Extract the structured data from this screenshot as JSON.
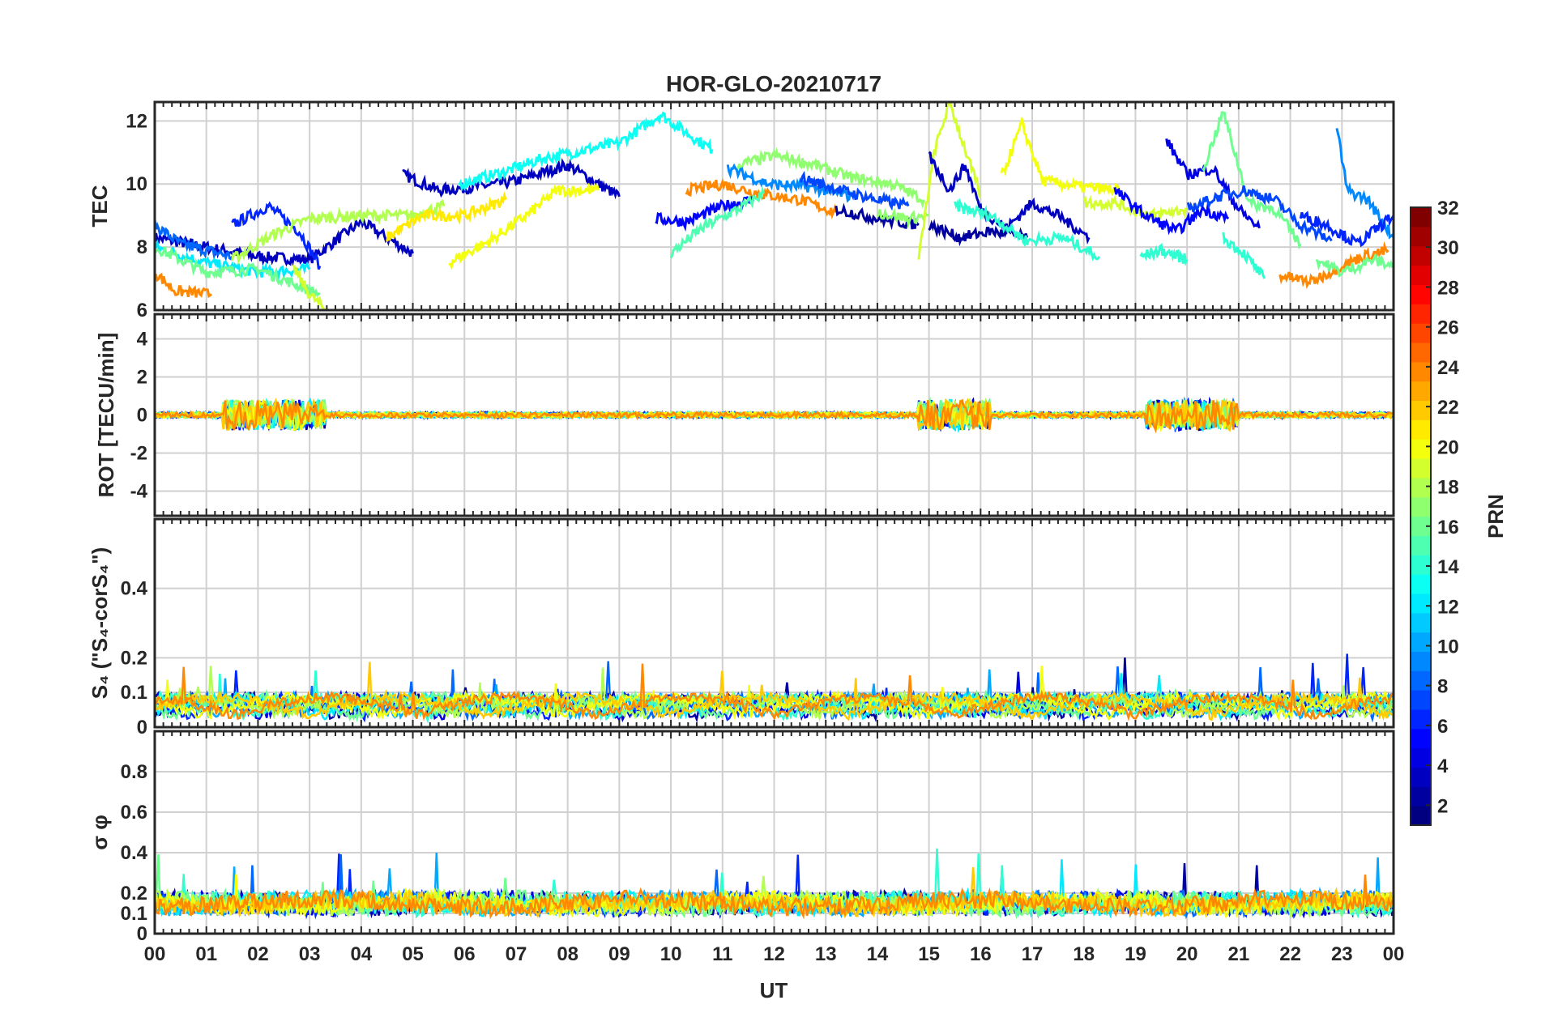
{
  "chart_data": {
    "type": "line",
    "title": "HOR-GLO-20210717",
    "xlabel": "UT",
    "x_tick_labels": [
      "00",
      "01",
      "02",
      "03",
      "04",
      "05",
      "06",
      "07",
      "08",
      "09",
      "10",
      "11",
      "12",
      "13",
      "14",
      "15",
      "16",
      "17",
      "18",
      "19",
      "20",
      "21",
      "22",
      "23",
      "00"
    ],
    "xlim_hours": [
      0,
      24
    ],
    "grid": true,
    "colorbar": {
      "label": "PRN",
      "range": [
        1,
        32
      ],
      "ticks": [
        "2",
        "4",
        "6",
        "8",
        "10",
        "12",
        "14",
        "16",
        "18",
        "20",
        "22",
        "24",
        "26",
        "28",
        "30",
        "32"
      ],
      "colormap": "jet"
    },
    "panels": [
      {
        "id": "tec",
        "ylabel": "TEC",
        "ylim": [
          6,
          12.6
        ],
        "yticks": [
          "6",
          "8",
          "10",
          "12"
        ],
        "series": [
          {
            "prn": 3,
            "points": [
              [
                0,
                8.3
              ],
              [
                1,
                8.0
              ],
              [
                2,
                7.7
              ],
              [
                3,
                7.6
              ],
              [
                4,
                8.8
              ],
              [
                5,
                7.8
              ]
            ]
          },
          {
            "prn": 3,
            "points": [
              [
                4.8,
                10.3
              ],
              [
                5.5,
                9.8
              ],
              [
                6.2,
                9.9
              ],
              [
                7,
                10.1
              ],
              [
                8,
                10.6
              ],
              [
                9,
                9.6
              ]
            ]
          },
          {
            "prn": 6,
            "points": [
              [
                1.5,
                8.7
              ],
              [
                2.2,
                9.3
              ],
              [
                2.8,
                8.5
              ],
              [
                3.2,
                7.4
              ]
            ]
          },
          {
            "prn": 8,
            "points": [
              [
                0,
                8.7
              ],
              [
                0.5,
                8.1
              ],
              [
                1,
                7.9
              ],
              [
                1.5,
                7.7
              ]
            ]
          },
          {
            "prn": 12,
            "points": [
              [
                0,
                8.0
              ],
              [
                1,
                7.5
              ],
              [
                2,
                7.2
              ],
              [
                3,
                7.3
              ]
            ]
          },
          {
            "prn": 13,
            "points": [
              [
                5.9,
                10.0
              ],
              [
                6.8,
                10.4
              ],
              [
                7.5,
                10.8
              ],
              [
                8.1,
                11.0
              ],
              [
                9,
                11.3
              ],
              [
                9.8,
                12.2
              ],
              [
                10.5,
                11.4
              ],
              [
                10.8,
                11.1
              ]
            ]
          },
          {
            "prn": 16,
            "points": [
              [
                0,
                8.0
              ],
              [
                1,
                7.2
              ],
              [
                2,
                7.3
              ],
              [
                3.2,
                6.5
              ]
            ]
          },
          {
            "prn": 18,
            "points": [
              [
                1.5,
                7.6
              ],
              [
                2.3,
                8.4
              ],
              [
                3.0,
                8.9
              ],
              [
                4.0,
                9.0
              ],
              [
                5,
                9.0
              ],
              [
                5.6,
                9.3
              ]
            ]
          },
          {
            "prn": 19,
            "points": [
              [
                2.7,
                7.3
              ],
              [
                3.0,
                6.5
              ],
              [
                3.3,
                6.0
              ]
            ]
          },
          {
            "prn": 20,
            "points": [
              [
                5.7,
                7.5
              ],
              [
                6.5,
                8.2
              ],
              [
                7.2,
                9.0
              ],
              [
                7.8,
                9.8
              ],
              [
                8.6,
                9.8
              ]
            ]
          },
          {
            "prn": 21,
            "points": [
              [
                4.5,
                8.3
              ],
              [
                5.2,
                9.0
              ],
              [
                6,
                9.0
              ],
              [
                6.8,
                9.5
              ]
            ]
          },
          {
            "prn": 24,
            "points": [
              [
                0,
                7.2
              ],
              [
                0.4,
                6.6
              ],
              [
                1.1,
                6.5
              ]
            ]
          },
          {
            "prn": 24,
            "points": [
              [
                10.3,
                9.8
              ],
              [
                11,
                10.0
              ],
              [
                11.7,
                9.7
              ],
              [
                12.5,
                9.5
              ],
              [
                13.2,
                9.1
              ]
            ]
          },
          {
            "prn": 5,
            "points": [
              [
                9.7,
                8.9
              ],
              [
                10.3,
                8.8
              ],
              [
                11,
                9.3
              ],
              [
                11.6,
                9.5
              ]
            ]
          },
          {
            "prn": 15,
            "points": [
              [
                10,
                7.8
              ],
              [
                10.6,
                8.6
              ],
              [
                11.3,
                9.2
              ],
              [
                11.8,
                9.7
              ]
            ]
          },
          {
            "prn": 17,
            "points": [
              [
                11.3,
                10.6
              ],
              [
                12,
                10.9
              ],
              [
                12.8,
                10.6
              ],
              [
                13.5,
                10.2
              ],
              [
                14.3,
                10.0
              ],
              [
                14.9,
                9.5
              ]
            ]
          },
          {
            "prn": 9,
            "points": [
              [
                11.1,
                10.5
              ],
              [
                11.9,
                10.0
              ],
              [
                12.7,
                9.9
              ],
              [
                13.5,
                9.6
              ]
            ]
          },
          {
            "prn": 7,
            "points": [
              [
                12.5,
                10.2
              ],
              [
                13.3,
                9.8
              ],
              [
                14,
                9.5
              ],
              [
                14.6,
                9.3
              ]
            ]
          },
          {
            "prn": 2,
            "points": [
              [
                13.2,
                9.2
              ],
              [
                14,
                8.9
              ],
              [
                14.8,
                8.7
              ]
            ]
          },
          {
            "prn": 17,
            "points": [
              [
                14.0,
                9.1
              ],
              [
                14.6,
                8.9
              ],
              [
                15,
                9.0
              ]
            ]
          },
          {
            "prn": 19,
            "points": [
              [
                14.8,
                7.6
              ],
              [
                15.1,
                11.0
              ],
              [
                15.4,
                12.6
              ],
              [
                15.7,
                11.1
              ],
              [
                16,
                9.6
              ]
            ]
          },
          {
            "prn": 3,
            "points": [
              [
                15,
                10.9
              ],
              [
                15.4,
                9.8
              ],
              [
                15.7,
                10.6
              ],
              [
                16,
                9.2
              ],
              [
                16.5,
                8.6
              ],
              [
                17,
                9.4
              ],
              [
                17.5,
                9.0
              ],
              [
                18.1,
                8.3
              ]
            ]
          },
          {
            "prn": 2,
            "points": [
              [
                15,
                8.7
              ],
              [
                15.6,
                8.3
              ],
              [
                16.2,
                8.5
              ],
              [
                16.9,
                8.3
              ]
            ]
          },
          {
            "prn": 20,
            "points": [
              [
                16.4,
                10.2
              ],
              [
                16.8,
                11.9
              ],
              [
                17.2,
                10.1
              ],
              [
                18,
                9.9
              ],
              [
                18.7,
                9.8
              ]
            ]
          },
          {
            "prn": 14,
            "points": [
              [
                15.5,
                9.3
              ],
              [
                16.2,
                9.0
              ],
              [
                16.9,
                8.2
              ],
              [
                17.6,
                8.3
              ],
              [
                18.3,
                7.7
              ]
            ]
          },
          {
            "prn": 19,
            "points": [
              [
                18.0,
                9.4
              ],
              [
                18.6,
                9.4
              ],
              [
                19.3,
                9.0
              ],
              [
                20,
                9.2
              ]
            ]
          },
          {
            "prn": 5,
            "points": [
              [
                18.6,
                9.8
              ],
              [
                19.2,
                9.0
              ],
              [
                19.8,
                8.5
              ],
              [
                20.3,
                9.2
              ],
              [
                20.8,
                8.9
              ]
            ]
          },
          {
            "prn": 4,
            "points": [
              [
                19.6,
                11.4
              ],
              [
                20,
                10.3
              ],
              [
                20.5,
                10.5
              ],
              [
                21,
                9.2
              ],
              [
                21.4,
                8.6
              ]
            ]
          },
          {
            "prn": 14,
            "points": [
              [
                19.1,
                7.7
              ],
              [
                19.5,
                7.9
              ],
              [
                20,
                7.6
              ]
            ]
          },
          {
            "prn": 16,
            "points": [
              [
                20.3,
                10.4
              ],
              [
                20.7,
                12.3
              ],
              [
                21.2,
                9.4
              ],
              [
                21.7,
                9.2
              ],
              [
                22.2,
                8.1
              ]
            ]
          },
          {
            "prn": 14,
            "points": [
              [
                20.7,
                8.3
              ],
              [
                21.1,
                7.8
              ],
              [
                21.5,
                7.0
              ]
            ]
          },
          {
            "prn": 7,
            "points": [
              [
                20,
                9.2
              ],
              [
                20.6,
                9.6
              ],
              [
                21.1,
                9.8
              ],
              [
                21.7,
                9.5
              ],
              [
                22.2,
                8.7
              ],
              [
                22.8,
                8.2
              ]
            ]
          },
          {
            "prn": 24,
            "points": [
              [
                21.8,
                7.1
              ],
              [
                22.4,
                6.9
              ],
              [
                23,
                7.4
              ],
              [
                23.4,
                7.7
              ],
              [
                23.9,
                7.9
              ]
            ]
          },
          {
            "prn": 9,
            "points": [
              [
                22.9,
                11.8
              ],
              [
                23.1,
                9.8
              ],
              [
                23.5,
                9.5
              ],
              [
                24,
                8.3
              ]
            ]
          },
          {
            "prn": 16,
            "points": [
              [
                22.5,
                7.6
              ],
              [
                23,
                7.2
              ],
              [
                23.6,
                7.6
              ],
              [
                24,
                7.4
              ]
            ]
          },
          {
            "prn": 6,
            "points": [
              [
                22.2,
                9.0
              ],
              [
                22.7,
                8.7
              ],
              [
                23.3,
                8.1
              ],
              [
                24,
                9.0
              ]
            ]
          }
        ]
      },
      {
        "id": "rot",
        "ylabel": "ROT [TECU/min]",
        "ylim": [
          -5.3,
          5.3
        ],
        "yticks": [
          "-4",
          "-2",
          "0",
          "2",
          "4"
        ]
      },
      {
        "id": "s4",
        "ylabel": "S₄ (\"S₄-corS₄\")",
        "ylim": [
          0,
          0.6
        ],
        "yticks": [
          "0",
          "0.1",
          "0.2",
          "0.4"
        ]
      },
      {
        "id": "sigma",
        "ylabel": "σ φ",
        "ylim": [
          0,
          1.0
        ],
        "yticks": [
          "0",
          "0.1",
          "0.2",
          "0.4",
          "0.6",
          "0.8"
        ]
      }
    ]
  }
}
